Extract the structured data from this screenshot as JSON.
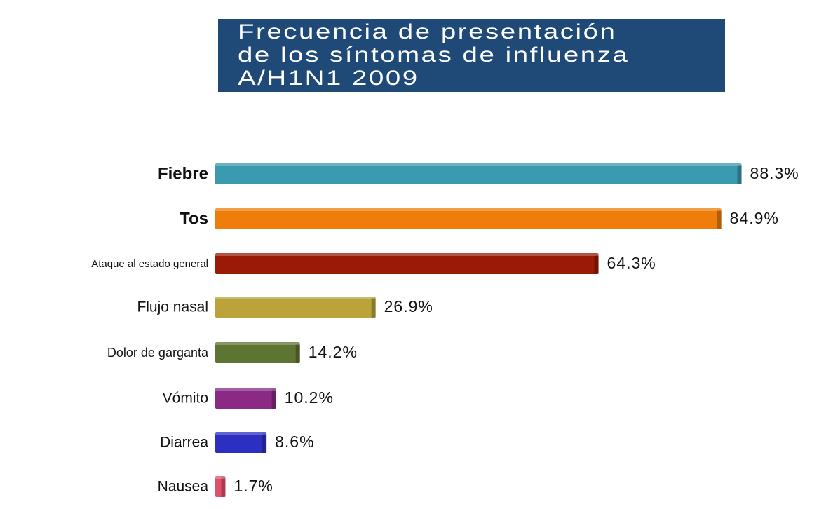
{
  "chart_data": {
    "type": "bar",
    "orientation": "horizontal",
    "title": "Frecuencia de presentación de los síntomas de influenza A/H1N1 2009",
    "categories": [
      "Fiebre",
      "Tos",
      "Ataque al estado general",
      "Flujo nasal",
      "Dolor de garganta",
      "Vómito",
      "Diarrea",
      "Nausea"
    ],
    "values": [
      88.3,
      84.9,
      64.3,
      26.9,
      14.2,
      10.2,
      8.6,
      1.7
    ],
    "value_labels": [
      "88.3%",
      "84.9%",
      "64.3%",
      "26.9%",
      "14.2%",
      "10.2%",
      "8.6%",
      "1.7%"
    ],
    "colors": [
      "#3a9ab0",
      "#ee7d0a",
      "#9a1a06",
      "#b9a33a",
      "#5e7432",
      "#8a2a84",
      "#2d2fc0",
      "#e0506a"
    ]
  }
}
